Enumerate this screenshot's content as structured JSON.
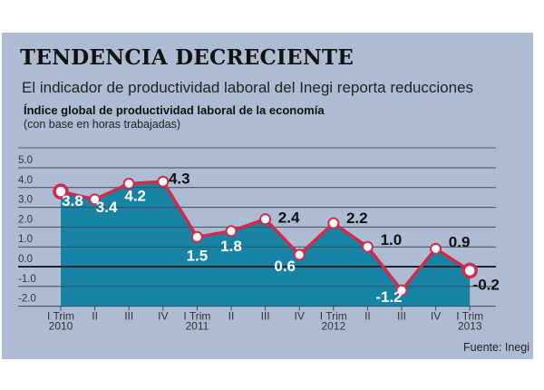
{
  "title": "TENDENCIA DECRECIENTE",
  "subtitle": "El indicador de productividad laboral del Inegi reporta reducciones",
  "source": "Fuente: Inegi",
  "colors": {
    "background": "#adbcd3",
    "area": "#1784a6",
    "line": "#d42a4a",
    "marker_fill": "#ffffff"
  },
  "chart_data": {
    "type": "area",
    "title": "Índice global de productividad laboral de la economía",
    "note": "(con base en horas trabajadas)",
    "categories": [
      "I Trim\n2010",
      "II",
      "III",
      "IV",
      "I Trim\n2011",
      "II",
      "III",
      "IV",
      "I Trim\n2012",
      "II",
      "III",
      "IV",
      "I Trim\n2013"
    ],
    "values": [
      3.8,
      3.4,
      4.2,
      4.3,
      1.5,
      1.8,
      2.4,
      0.6,
      2.2,
      1.0,
      -1.2,
      0.9,
      -0.2
    ],
    "data_labels": [
      "3.8",
      "3.4",
      "4.2",
      "4.3",
      "1.5",
      "1.8",
      "2.4",
      "0.6",
      "2.2",
      "1.0",
      "-1.2",
      "0.9",
      "-0.2"
    ],
    "y_ticks": [
      "5.0",
      "4.0",
      "3.0",
      "2.0",
      "1.0",
      "0.0",
      "-1.0",
      "-2.0"
    ],
    "ylim": [
      -2,
      5
    ],
    "grid": true
  }
}
